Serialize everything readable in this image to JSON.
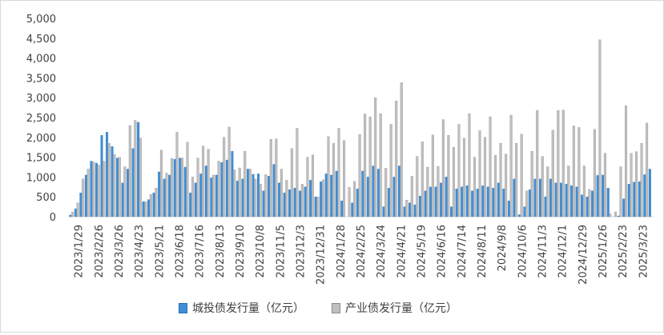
{
  "legend": {
    "series_a": "城投债发行量（亿元）",
    "series_b": "产业债发行量（亿元）"
  },
  "colors": {
    "series_a": "#3f8fd8",
    "series_a_stroke": "#2c6fae",
    "series_b": "#bfbfbf",
    "series_b_stroke": "#8c8c8c",
    "axis": "#d9d9d9",
    "text": "#404040"
  },
  "chart_data": {
    "type": "bar",
    "title": "",
    "xlabel": "",
    "ylabel": "",
    "ylim": [
      0,
      5000
    ],
    "yticks": [
      "0",
      "500",
      "1,000",
      "1,500",
      "2,000",
      "2,500",
      "3,000",
      "3,500",
      "4,000",
      "4,500",
      "5,000"
    ],
    "x_tick_labels": [
      "2023/1/29",
      "2023/2/26",
      "2023/3/26",
      "2023/4/23",
      "2023/5/21",
      "2023/6/18",
      "2023/7/16",
      "2023/8/13",
      "2023/9/10",
      "2023/10/8",
      "2023/11/5",
      "2023/12/3",
      "2023/12/31",
      "2024/1/28",
      "2024/2/25",
      "2024/3/24",
      "2024/4/21",
      "2024/5/19",
      "2024/6/16",
      "2024/7/14",
      "2024/8/11",
      "2024/9/8",
      "2024/10/6",
      "2024/11/3",
      "2024/12/1",
      "2024/12/29",
      "2025/1/26",
      "2025/2/23",
      "2025/3/23"
    ],
    "series": [
      {
        "name": "城投债发行量（亿元）",
        "values": [
          40,
          200,
          600,
          1050,
          1400,
          1350,
          2050,
          2130,
          1770,
          1480,
          850,
          1200,
          1720,
          2380,
          380,
          430,
          600,
          1130,
          950,
          1050,
          1450,
          1480,
          1250,
          600,
          850,
          1080,
          1280,
          980,
          1050,
          1370,
          1430,
          1650,
          900,
          950,
          1200,
          1070,
          1080,
          650,
          1020,
          1320,
          850,
          600,
          680,
          720,
          650,
          750,
          920,
          500,
          880,
          1080,
          1050,
          1150,
          400,
          0,
          350,
          700,
          1150,
          1000,
          1280,
          1200,
          250,
          720,
          1000,
          1280,
          250,
          350,
          300,
          520,
          650,
          750,
          750,
          850,
          1000,
          250,
          700,
          750,
          780,
          650,
          700,
          780,
          750,
          720,
          850,
          700,
          400,
          950,
          50,
          250,
          680,
          950,
          950,
          500,
          950,
          850,
          850,
          820,
          780,
          750,
          550,
          500,
          650,
          1040,
          1050,
          720,
          0,
          20,
          450,
          820,
          870,
          880,
          1060,
          1200
        ]
      },
      {
        "name": "产业债发行量（亿元）",
        "values": [
          120,
          350,
          950,
          1200,
          1380,
          1300,
          1400,
          1850,
          1570,
          1500,
          1260,
          2300,
          2430,
          1980,
          380,
          560,
          720,
          1680,
          1100,
          1470,
          2130,
          1480,
          1880,
          1000,
          1480,
          1780,
          1700,
          1050,
          1400,
          2000,
          2260,
          1180,
          1230,
          1650,
          1200,
          950,
          820,
          1060,
          1950,
          1960,
          1200,
          920,
          1720,
          2230,
          820,
          1500,
          1560,
          500,
          930,
          2020,
          1850,
          2230,
          1920,
          740,
          890,
          2070,
          2590,
          2520,
          3000,
          2600,
          1220,
          2330,
          2920,
          3380,
          420,
          1020,
          1520,
          1890,
          1250,
          2060,
          1270,
          2450,
          2050,
          1750,
          2330,
          1980,
          2600,
          1500,
          2170,
          2000,
          2520,
          1550,
          1850,
          1580,
          2560,
          1850,
          2080,
          650,
          1650,
          2680,
          1520,
          1260,
          2180,
          2680,
          2690,
          1280,
          2290,
          2250,
          1280,
          690,
          2200,
          4460,
          1600,
          70,
          120,
          1260,
          2800,
          1600,
          1640,
          1850,
          2360
        ]
      }
    ]
  }
}
